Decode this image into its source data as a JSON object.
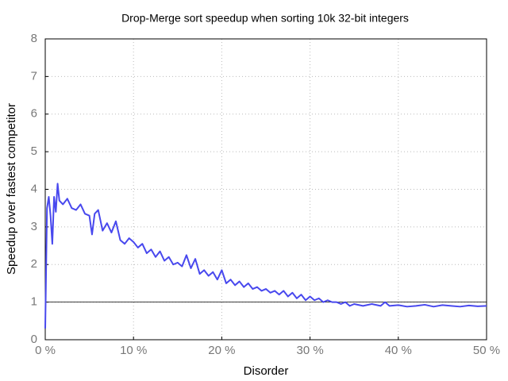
{
  "chart_data": {
    "type": "line",
    "title": "Drop-Merge sort speedup when sorting 10k 32-bit integers",
    "x_label": "Disorder",
    "y_label": "Speedup over fastest competitor",
    "x": [
      0,
      0.2,
      0.4,
      0.6,
      0.8,
      1,
      1.2,
      1.4,
      1.6,
      2,
      2.5,
      3,
      3.5,
      4,
      4.5,
      5,
      5.3,
      5.6,
      6,
      6.5,
      7,
      7.5,
      8,
      8.5,
      9,
      9.5,
      10,
      10.5,
      11,
      11.5,
      12,
      12.5,
      13,
      13.5,
      14,
      14.5,
      15,
      15.5,
      16,
      16.5,
      17,
      17.5,
      18,
      18.5,
      19,
      19.5,
      20,
      20.5,
      21,
      21.5,
      22,
      22.5,
      23,
      23.5,
      24,
      24.5,
      25,
      25.5,
      26,
      26.5,
      27,
      27.5,
      28,
      28.5,
      29,
      29.5,
      30,
      30.5,
      31,
      31.5,
      32,
      32.5,
      33,
      33.5,
      34,
      34.5,
      35,
      36,
      37,
      38,
      38.5,
      39,
      40,
      41,
      42,
      43,
      44,
      45,
      46,
      47,
      48,
      49,
      50
    ],
    "series": [
      {
        "name": "Speedup",
        "color": "#4848ee",
        "values": [
          0.3,
          3.5,
          3.8,
          3.3,
          2.55,
          3.8,
          3.4,
          4.15,
          3.7,
          3.6,
          3.75,
          3.5,
          3.45,
          3.6,
          3.35,
          3.3,
          2.8,
          3.35,
          3.45,
          2.9,
          3.1,
          2.85,
          3.15,
          2.65,
          2.55,
          2.7,
          2.6,
          2.45,
          2.55,
          2.3,
          2.4,
          2.2,
          2.35,
          2.1,
          2.2,
          2.0,
          2.05,
          1.95,
          2.25,
          1.9,
          2.15,
          1.75,
          1.85,
          1.7,
          1.8,
          1.6,
          1.85,
          1.5,
          1.6,
          1.45,
          1.55,
          1.4,
          1.5,
          1.35,
          1.4,
          1.3,
          1.35,
          1.25,
          1.3,
          1.2,
          1.3,
          1.15,
          1.25,
          1.1,
          1.2,
          1.05,
          1.15,
          1.05,
          1.1,
          1.0,
          1.05,
          1.0,
          1.0,
          0.95,
          1.0,
          0.9,
          0.95,
          0.9,
          0.95,
          0.9,
          1.0,
          0.9,
          0.92,
          0.88,
          0.9,
          0.93,
          0.88,
          0.92,
          0.9,
          0.88,
          0.91,
          0.89,
          0.9
        ]
      }
    ],
    "reference_line": 1,
    "xlim": [
      0,
      50
    ],
    "ylim": [
      0,
      8
    ],
    "xticks": [
      {
        "value": 0,
        "label": "0 %"
      },
      {
        "value": 10,
        "label": "10 %"
      },
      {
        "value": 20,
        "label": "20 %"
      },
      {
        "value": 30,
        "label": "30 %"
      },
      {
        "value": 40,
        "label": "40 %"
      },
      {
        "value": 50,
        "label": "50 %"
      }
    ],
    "yticks": [
      0,
      1,
      2,
      3,
      4,
      5,
      6,
      7,
      8
    ],
    "grid": true
  }
}
